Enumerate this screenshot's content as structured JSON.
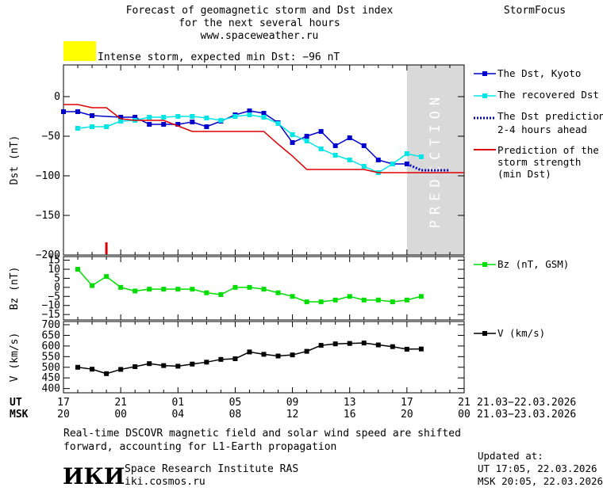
{
  "header": {
    "title_line1": "Forecast of geomagnetic storm and Dst index",
    "title_line2": "for the next several hours",
    "website": "www.spaceweather.ru",
    "brand": "StormFocus",
    "storm_color": "#ffff00",
    "storm_text": "Intense storm, expected min Dst: −96 nT"
  },
  "footer": {
    "note_line1": "Real-time DSCOVR magnetic field and solar wind speed are shifted",
    "note_line2": "forward, accounting for L1-Earth propagation",
    "logo_text": "ИКИ",
    "institute": "Space Research Institute RAS",
    "site": "iki.cosmos.ru",
    "updated_label": "Updated at:",
    "updated_ut": "UT   17:05, 22.03.2026",
    "updated_msk": "MSK 20:05, 22.03.2026"
  },
  "chart_data": [
    {
      "type": "line",
      "ylabel": "Dst (nT)",
      "ylim": [
        -200,
        40
      ],
      "yticks": [
        0,
        -50,
        -100,
        -150,
        -200
      ],
      "ytick_labels": [
        "0",
        "−50",
        "−100",
        "−150",
        "−200"
      ],
      "xlim": [
        0,
        28
      ],
      "prediction_region": [
        24,
        28
      ],
      "prediction_label": "PREDICTION",
      "current_marker": {
        "x": 3,
        "color": "#dd0000"
      },
      "series": [
        {
          "name": "The Dst, Kyoto",
          "color": "#0000cc",
          "marker": "square",
          "x": [
            0,
            1,
            2,
            4,
            5,
            6,
            7,
            8,
            9,
            10,
            11,
            12,
            13,
            14,
            15,
            16,
            17,
            18,
            19,
            20,
            21,
            22,
            23,
            24
          ],
          "y": [
            -19,
            -19,
            -24,
            -26,
            -26,
            -35,
            -35,
            -35,
            -32,
            -38,
            -31,
            -23,
            -18,
            -21,
            -33,
            -58,
            -50,
            -44,
            -62,
            -52,
            -62,
            -80,
            -85,
            -85
          ]
        },
        {
          "name": "The recovered Dst",
          "color": "#00e5e5",
          "marker": "square",
          "x": [
            1,
            2,
            3,
            4,
            5,
            6,
            7,
            8,
            9,
            10,
            11,
            12,
            13,
            14,
            15,
            16,
            17,
            18,
            19,
            20,
            21,
            22,
            23,
            24,
            25
          ],
          "y": [
            -40,
            -38,
            -38,
            -31,
            -30,
            -26,
            -26,
            -25,
            -25,
            -27,
            -30,
            -25,
            -23,
            -26,
            -34,
            -48,
            -56,
            -66,
            -74,
            -80,
            -88,
            -96,
            -85,
            -72,
            -76
          ]
        },
        {
          "name": "The Dst prediction 2-4 hours ahead",
          "color": "#0000cc",
          "dotted": true,
          "x": [
            24,
            25,
            26,
            27
          ],
          "y": [
            -85,
            -93,
            -93,
            -93
          ]
        },
        {
          "name": "Prediction of the storm strength (min Dst)",
          "color": "#dd0000",
          "x": [
            0,
            1,
            2,
            3,
            4,
            5,
            6,
            7,
            8,
            9,
            10,
            11,
            12,
            13,
            14,
            15,
            16,
            17,
            18,
            19,
            20,
            21,
            22,
            23,
            24,
            25,
            26,
            27,
            28
          ],
          "y": [
            -10,
            -10,
            -14,
            -14,
            -28,
            -30,
            -30,
            -30,
            -37,
            -44,
            -44,
            -44,
            -44,
            -44,
            -44,
            -60,
            -75,
            -92,
            -92,
            -92,
            -92,
            -92,
            -96,
            -96,
            -96,
            -96,
            -96,
            -96,
            -96
          ]
        }
      ],
      "legend": [
        "The Dst, Kyoto",
        "The recovered Dst",
        "The Dst prediction",
        "2-4 hours ahead",
        "Prediction of the",
        "storm strength",
        "(min Dst)"
      ]
    },
    {
      "type": "line",
      "ylabel": "Bz (nT)",
      "ylim": [
        -18,
        17
      ],
      "yticks": [
        15,
        10,
        5,
        0,
        -5,
        -10,
        -15
      ],
      "ytick_labels": [
        "15",
        "10",
        "5",
        "0",
        "−5",
        "−10",
        "−15"
      ],
      "series": [
        {
          "name": "Bz (nT, GSM)",
          "color": "#00dd00",
          "marker": "square",
          "x": [
            1,
            2,
            3,
            4,
            5,
            6,
            7,
            8,
            9,
            10,
            11,
            12,
            13,
            14,
            15,
            16,
            17,
            18,
            19,
            20,
            21,
            22,
            23,
            24,
            25
          ],
          "y": [
            10,
            1,
            6,
            0,
            -2,
            -1,
            -1,
            -1,
            -1,
            -3,
            -4,
            0,
            0,
            -1,
            -3,
            -5,
            -8,
            -8,
            -7,
            -5,
            -7,
            -7,
            -8,
            -7,
            -5
          ]
        }
      ],
      "legend": [
        "Bz (nT, GSM)"
      ]
    },
    {
      "type": "line",
      "ylabel": "V (km/s)",
      "ylim": [
        380,
        715
      ],
      "yticks": [
        400,
        450,
        500,
        550,
        600,
        650,
        700
      ],
      "ytick_labels": [
        "400",
        "450",
        "500",
        "550",
        "600",
        "650",
        "700"
      ],
      "series": [
        {
          "name": "V (km/s)",
          "color": "#000000",
          "marker": "square",
          "x": [
            1,
            2,
            3,
            4,
            5,
            6,
            7,
            8,
            9,
            10,
            11,
            12,
            13,
            14,
            15,
            16,
            17,
            18,
            19,
            20,
            21,
            22,
            23,
            24,
            25
          ],
          "y": [
            500,
            491,
            470,
            490,
            503,
            517,
            508,
            505,
            515,
            524,
            537,
            540,
            572,
            561,
            553,
            558,
            575,
            603,
            610,
            612,
            614,
            605,
            597,
            585,
            586
          ]
        }
      ],
      "legend": [
        "V (km/s)"
      ]
    }
  ],
  "time_axis": {
    "ut_label": "UT",
    "msk_label": "MSK",
    "ut_ticks": [
      "17",
      "21",
      "01",
      "05",
      "09",
      "13",
      "17",
      "21"
    ],
    "msk_ticks": [
      "20",
      "00",
      "04",
      "08",
      "12",
      "16",
      "20",
      "00"
    ],
    "ut_range": "21.03−22.03.2026",
    "msk_range": "21.03−23.03.2026"
  }
}
